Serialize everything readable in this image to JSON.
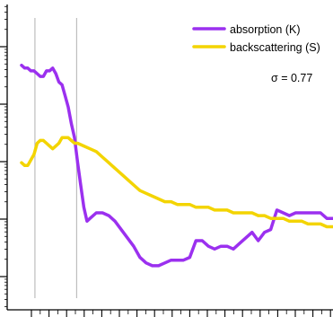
{
  "chart_data": {
    "type": "line",
    "title": "",
    "xlabel": "",
    "ylabel": "",
    "xlim": [
      0,
      100
    ],
    "ylim": [
      0,
      100
    ],
    "y_scale": "log",
    "grid": false,
    "legend_position": "top-right",
    "annotation": "σ = 0.77",
    "reference_lines_x": [
      4.3,
      17.7
    ],
    "series": [
      {
        "name": "absorption (K)",
        "color": "#9b30ef",
        "x": [
          0,
          1,
          2,
          3,
          4,
          5,
          6,
          7,
          8,
          9,
          10,
          11,
          12,
          13,
          14,
          15,
          16,
          17,
          18,
          19,
          20,
          21,
          22,
          24,
          26,
          28,
          30,
          32,
          34,
          36,
          38,
          40,
          42,
          44,
          46,
          48,
          50,
          52,
          54,
          56,
          58,
          60,
          62,
          64,
          66,
          68,
          70,
          72,
          74,
          76,
          78,
          80,
          82,
          84,
          86,
          88,
          90,
          92,
          94,
          96,
          98,
          100
        ],
        "y": [
          83,
          82,
          82,
          81,
          81,
          80,
          79,
          79,
          81,
          81,
          82,
          80,
          77,
          76,
          72,
          68,
          62,
          57,
          48,
          40,
          32,
          27,
          28,
          30,
          30,
          29,
          27,
          24,
          21,
          18,
          14,
          12,
          11,
          11,
          12,
          13,
          13,
          13,
          14,
          20,
          20,
          18,
          17,
          18,
          18,
          17,
          19,
          21,
          23,
          20,
          23,
          24,
          31,
          30,
          29,
          30,
          30,
          30,
          30,
          30,
          28,
          28
        ]
      },
      {
        "name": "backscattering (S)",
        "color": "#f3d400",
        "x": [
          0,
          1,
          2,
          3,
          4,
          5,
          6,
          7,
          8,
          9,
          10,
          11,
          12,
          13,
          14,
          15,
          16,
          17,
          18,
          20,
          22,
          24,
          26,
          28,
          30,
          32,
          34,
          36,
          38,
          40,
          42,
          44,
          46,
          48,
          50,
          52,
          54,
          56,
          58,
          60,
          62,
          64,
          66,
          68,
          70,
          72,
          74,
          76,
          78,
          80,
          82,
          84,
          86,
          88,
          90,
          92,
          94,
          96,
          98,
          100
        ],
        "y": [
          48,
          47,
          47,
          49,
          51,
          55,
          56,
          56,
          55,
          54,
          53,
          54,
          55,
          57,
          57,
          57,
          56,
          55,
          55,
          54,
          53,
          52,
          50,
          48,
          46,
          44,
          42,
          40,
          38,
          37,
          36,
          35,
          34,
          34,
          33,
          33,
          33,
          32,
          32,
          32,
          31,
          31,
          31,
          30,
          30,
          30,
          30,
          29,
          29,
          28,
          28,
          28,
          27,
          27,
          27,
          26,
          26,
          26,
          25,
          25
        ]
      }
    ]
  }
}
